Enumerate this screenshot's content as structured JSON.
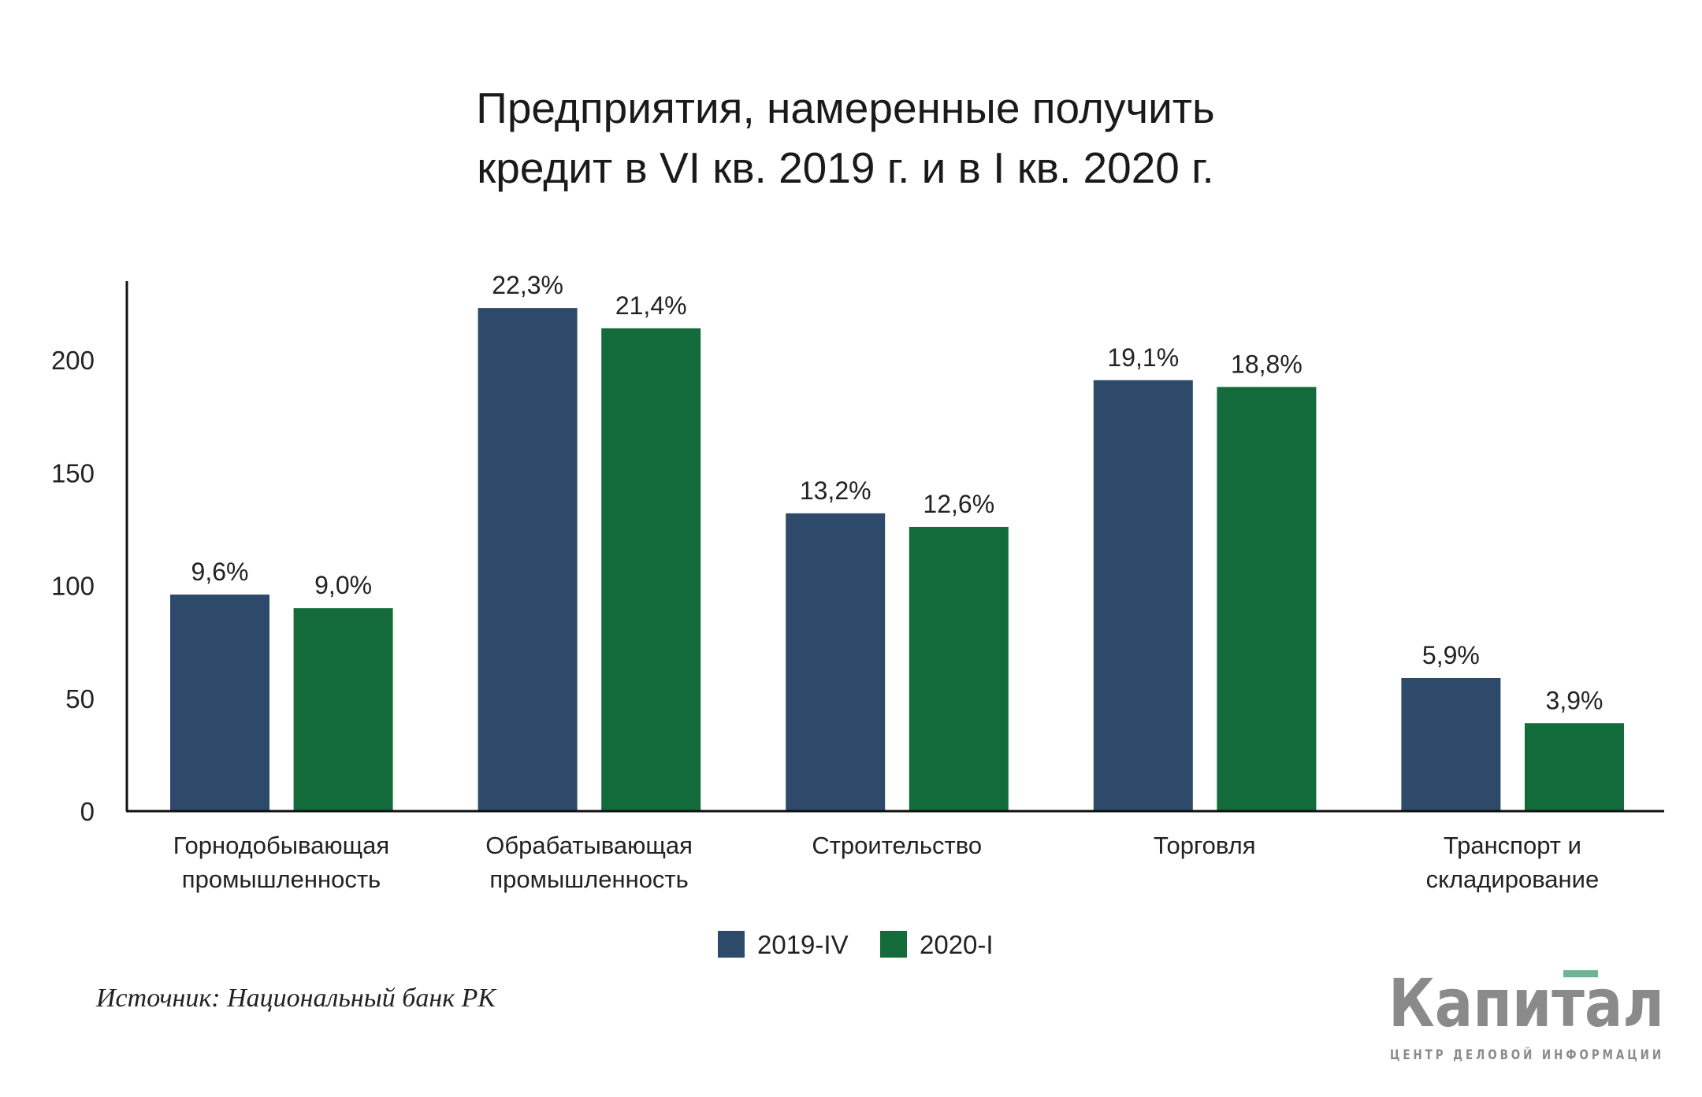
{
  "chart_data": {
    "type": "bar",
    "title_lines": [
      "Предприятия, намеренные получить",
      "кредит в VI кв. 2019 г. и в I кв. 2020 г."
    ],
    "categories": [
      [
        "Горнодобывающая",
        "промышленность"
      ],
      [
        "Обрабатывающая",
        "промышленность"
      ],
      [
        "Строительство"
      ],
      [
        "Торговля"
      ],
      [
        "Транспорт и",
        "складирование"
      ]
    ],
    "series": [
      {
        "name": "2019-IV",
        "color": "#2e4a6b",
        "values": [
          96,
          223,
          132,
          191,
          59
        ],
        "labels": [
          "9,6%",
          "22,3%",
          "13,2%",
          "19,1%",
          "5,9%"
        ]
      },
      {
        "name": "2020-I",
        "color": "#136b3b",
        "values": [
          90,
          214,
          126,
          188,
          39
        ],
        "labels": [
          "9,0%",
          "21,4%",
          "12,6%",
          "18,8%",
          "3,9%"
        ]
      }
    ],
    "yticks": [
      0,
      50,
      100,
      150,
      200
    ],
    "ylim": [
      0,
      235
    ],
    "grid": false,
    "legend_position": "bottom"
  },
  "source": "Источник: Национальный банк РК",
  "logo": {
    "name": "Капитал",
    "tagline": "ЦЕНТР ДЕЛОВОЙ ИНФОРМАЦИИ",
    "accent": "#6bb592"
  }
}
